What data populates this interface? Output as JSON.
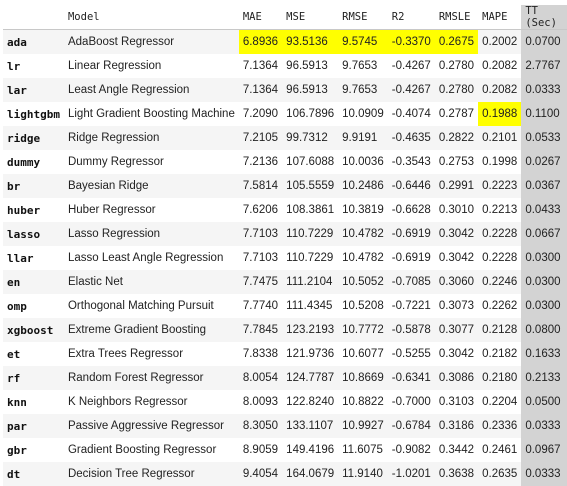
{
  "table": {
    "columns": [
      "Model",
      "MAE",
      "MSE",
      "RMSE",
      "R2",
      "RMSLE",
      "MAPE",
      "TT (Sec)"
    ],
    "rows": [
      {
        "idx": "ada",
        "cells": [
          "AdaBoost Regressor",
          "6.8936",
          "93.5136",
          "9.5745",
          "-0.3370",
          "0.2675",
          "0.2002",
          "0.0700"
        ]
      },
      {
        "idx": "lr",
        "cells": [
          "Linear Regression",
          "7.1364",
          "96.5913",
          "9.7653",
          "-0.4267",
          "0.2780",
          "0.2082",
          "2.7767"
        ]
      },
      {
        "idx": "lar",
        "cells": [
          "Least Angle Regression",
          "7.1364",
          "96.5913",
          "9.7653",
          "-0.4267",
          "0.2780",
          "0.2082",
          "0.0333"
        ]
      },
      {
        "idx": "lightgbm",
        "cells": [
          "Light Gradient Boosting Machine",
          "7.2090",
          "106.7896",
          "10.0909",
          "-0.4074",
          "0.2787",
          "0.1988",
          "0.1100"
        ]
      },
      {
        "idx": "ridge",
        "cells": [
          "Ridge Regression",
          "7.2105",
          "99.7312",
          "9.9191",
          "-0.4635",
          "0.2822",
          "0.2101",
          "0.0533"
        ]
      },
      {
        "idx": "dummy",
        "cells": [
          "Dummy Regressor",
          "7.2136",
          "107.6088",
          "10.0036",
          "-0.3543",
          "0.2753",
          "0.1998",
          "0.0267"
        ]
      },
      {
        "idx": "br",
        "cells": [
          "Bayesian Ridge",
          "7.5814",
          "105.5559",
          "10.2486",
          "-0.6446",
          "0.2991",
          "0.2223",
          "0.0367"
        ]
      },
      {
        "idx": "huber",
        "cells": [
          "Huber Regressor",
          "7.6206",
          "108.3861",
          "10.3819",
          "-0.6628",
          "0.3010",
          "0.2213",
          "0.0433"
        ]
      },
      {
        "idx": "lasso",
        "cells": [
          "Lasso Regression",
          "7.7103",
          "110.7229",
          "10.4782",
          "-0.6919",
          "0.3042",
          "0.2228",
          "0.0667"
        ]
      },
      {
        "idx": "llar",
        "cells": [
          "Lasso Least Angle Regression",
          "7.7103",
          "110.7229",
          "10.4782",
          "-0.6919",
          "0.3042",
          "0.2228",
          "0.0300"
        ]
      },
      {
        "idx": "en",
        "cells": [
          "Elastic Net",
          "7.7475",
          "111.2104",
          "10.5052",
          "-0.7085",
          "0.3060",
          "0.2246",
          "0.0300"
        ]
      },
      {
        "idx": "omp",
        "cells": [
          "Orthogonal Matching Pursuit",
          "7.7740",
          "111.4345",
          "10.5208",
          "-0.7221",
          "0.3073",
          "0.2262",
          "0.0300"
        ]
      },
      {
        "idx": "xgboost",
        "cells": [
          "Extreme Gradient Boosting",
          "7.7845",
          "123.2193",
          "10.7772",
          "-0.5878",
          "0.3077",
          "0.2128",
          "0.0800"
        ]
      },
      {
        "idx": "et",
        "cells": [
          "Extra Trees Regressor",
          "7.8338",
          "121.9736",
          "10.6077",
          "-0.5255",
          "0.3042",
          "0.2182",
          "0.1633"
        ]
      },
      {
        "idx": "rf",
        "cells": [
          "Random Forest Regressor",
          "8.0054",
          "124.7787",
          "10.8669",
          "-0.6341",
          "0.3086",
          "0.2180",
          "0.2133"
        ]
      },
      {
        "idx": "knn",
        "cells": [
          "K Neighbors Regressor",
          "8.0093",
          "122.8240",
          "10.8822",
          "-0.7000",
          "0.3103",
          "0.2204",
          "0.0500"
        ]
      },
      {
        "idx": "par",
        "cells": [
          "Passive Aggressive Regressor",
          "8.3050",
          "133.1107",
          "10.9927",
          "-0.6784",
          "0.3186",
          "0.2336",
          "0.0333"
        ]
      },
      {
        "idx": "gbr",
        "cells": [
          "Gradient Boosting Regressor",
          "8.9059",
          "149.4196",
          "11.6075",
          "-0.9082",
          "0.3442",
          "0.2461",
          "0.0967"
        ]
      },
      {
        "idx": "dt",
        "cells": [
          "Decision Tree Regressor",
          "9.4054",
          "164.0679",
          "11.9140",
          "-1.0201",
          "0.3638",
          "0.2635",
          "0.0333"
        ]
      }
    ],
    "highlights": [
      {
        "row": 0,
        "col": 1
      },
      {
        "row": 0,
        "col": 2
      },
      {
        "row": 0,
        "col": 3
      },
      {
        "row": 0,
        "col": 4
      },
      {
        "row": 0,
        "col": 5
      },
      {
        "row": 3,
        "col": 6
      }
    ],
    "colors": {
      "highlight": "#ffff00",
      "tt_column": "#d3d3d3",
      "stripe": "#f5f5f5"
    }
  }
}
